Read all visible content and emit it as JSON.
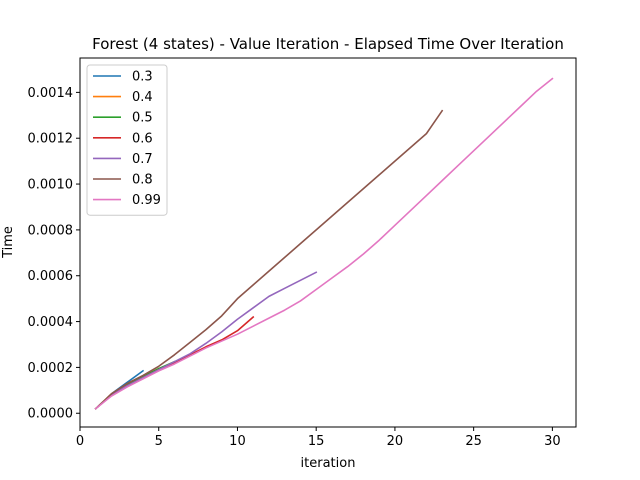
{
  "chart_data": {
    "type": "line",
    "title": "Forest (4 states) - Value Iteration - Elapsed Time Over Iteration",
    "xlabel": "iteration",
    "ylabel": "Time",
    "xlim": [
      0,
      31.5
    ],
    "ylim": [
      -6e-05,
      0.00155
    ],
    "xticks": [
      0,
      5,
      10,
      15,
      20,
      25,
      30
    ],
    "xtick_labels": [
      "0",
      "5",
      "10",
      "15",
      "20",
      "25",
      "30"
    ],
    "yticks": [
      0,
      0.0002,
      0.0004,
      0.0006,
      0.0008,
      0.001,
      0.0012,
      0.0014
    ],
    "ytick_labels": [
      "0.0000",
      "0.0002",
      "0.0004",
      "0.0006",
      "0.0008",
      "0.0010",
      "0.0012",
      "0.0014"
    ],
    "grid": false,
    "legend_position": "top-left",
    "series": [
      {
        "name": "0.3",
        "color": "#1f77b4",
        "x": [
          1,
          2,
          3,
          4
        ],
        "y": [
          2e-05,
          8.5e-05,
          0.000135,
          0.000185
        ]
      },
      {
        "name": "0.4",
        "color": "#ff7f0e",
        "x": [
          1,
          2,
          3,
          4,
          5
        ],
        "y": [
          2e-05,
          8.5e-05,
          0.000125,
          0.00016,
          0.000195
        ]
      },
      {
        "name": "0.5",
        "color": "#2ca02c",
        "x": [
          1,
          2,
          3,
          4,
          5,
          6
        ],
        "y": [
          2e-05,
          8e-05,
          0.000125,
          0.00016,
          0.000195,
          0.000225
        ]
      },
      {
        "name": "0.6",
        "color": "#d62728",
        "x": [
          1,
          2,
          3,
          4,
          5,
          6,
          7,
          8,
          9,
          10,
          11
        ],
        "y": [
          2e-05,
          8e-05,
          0.00012,
          0.000155,
          0.00019,
          0.00022,
          0.000255,
          0.00029,
          0.00032,
          0.00036,
          0.00042
        ]
      },
      {
        "name": "0.7",
        "color": "#9467bd",
        "x": [
          1,
          2,
          3,
          4,
          5,
          6,
          7,
          8,
          9,
          10,
          11,
          12,
          13,
          14,
          15
        ],
        "y": [
          2e-05,
          8e-05,
          0.00012,
          0.000155,
          0.00019,
          0.000225,
          0.00026,
          0.000305,
          0.000355,
          0.00041,
          0.00046,
          0.00051,
          0.000545,
          0.00058,
          0.000615
        ]
      },
      {
        "name": "0.8",
        "color": "#8c564b",
        "x": [
          1,
          2,
          3,
          4,
          5,
          6,
          7,
          8,
          9,
          10,
          11,
          12,
          13,
          14,
          15,
          16,
          17,
          18,
          19,
          20,
          21,
          22,
          23
        ],
        "y": [
          2e-05,
          8.5e-05,
          0.00013,
          0.000165,
          0.000205,
          0.000255,
          0.00031,
          0.000365,
          0.000425,
          0.0005,
          0.00056,
          0.00062,
          0.00068,
          0.00074,
          0.0008,
          0.00086,
          0.00092,
          0.00098,
          0.00104,
          0.0011,
          0.00116,
          0.00122,
          0.00132
        ]
      },
      {
        "name": "0.99",
        "color": "#e377c2",
        "x": [
          1,
          2,
          3,
          4,
          5,
          6,
          7,
          8,
          9,
          10,
          11,
          12,
          13,
          14,
          15,
          16,
          17,
          18,
          19,
          20,
          21,
          22,
          23,
          24,
          25,
          26,
          27,
          28,
          29,
          30
        ],
        "y": [
          2e-05,
          7.5e-05,
          0.000115,
          0.00015,
          0.000185,
          0.000215,
          0.00025,
          0.000285,
          0.000315,
          0.000345,
          0.00038,
          0.000415,
          0.00045,
          0.00049,
          0.00054,
          0.00059,
          0.00064,
          0.000695,
          0.000755,
          0.00082,
          0.000885,
          0.00095,
          0.001015,
          0.00108,
          0.001145,
          0.00121,
          0.001275,
          0.00134,
          0.001405,
          0.00146
        ]
      }
    ]
  }
}
